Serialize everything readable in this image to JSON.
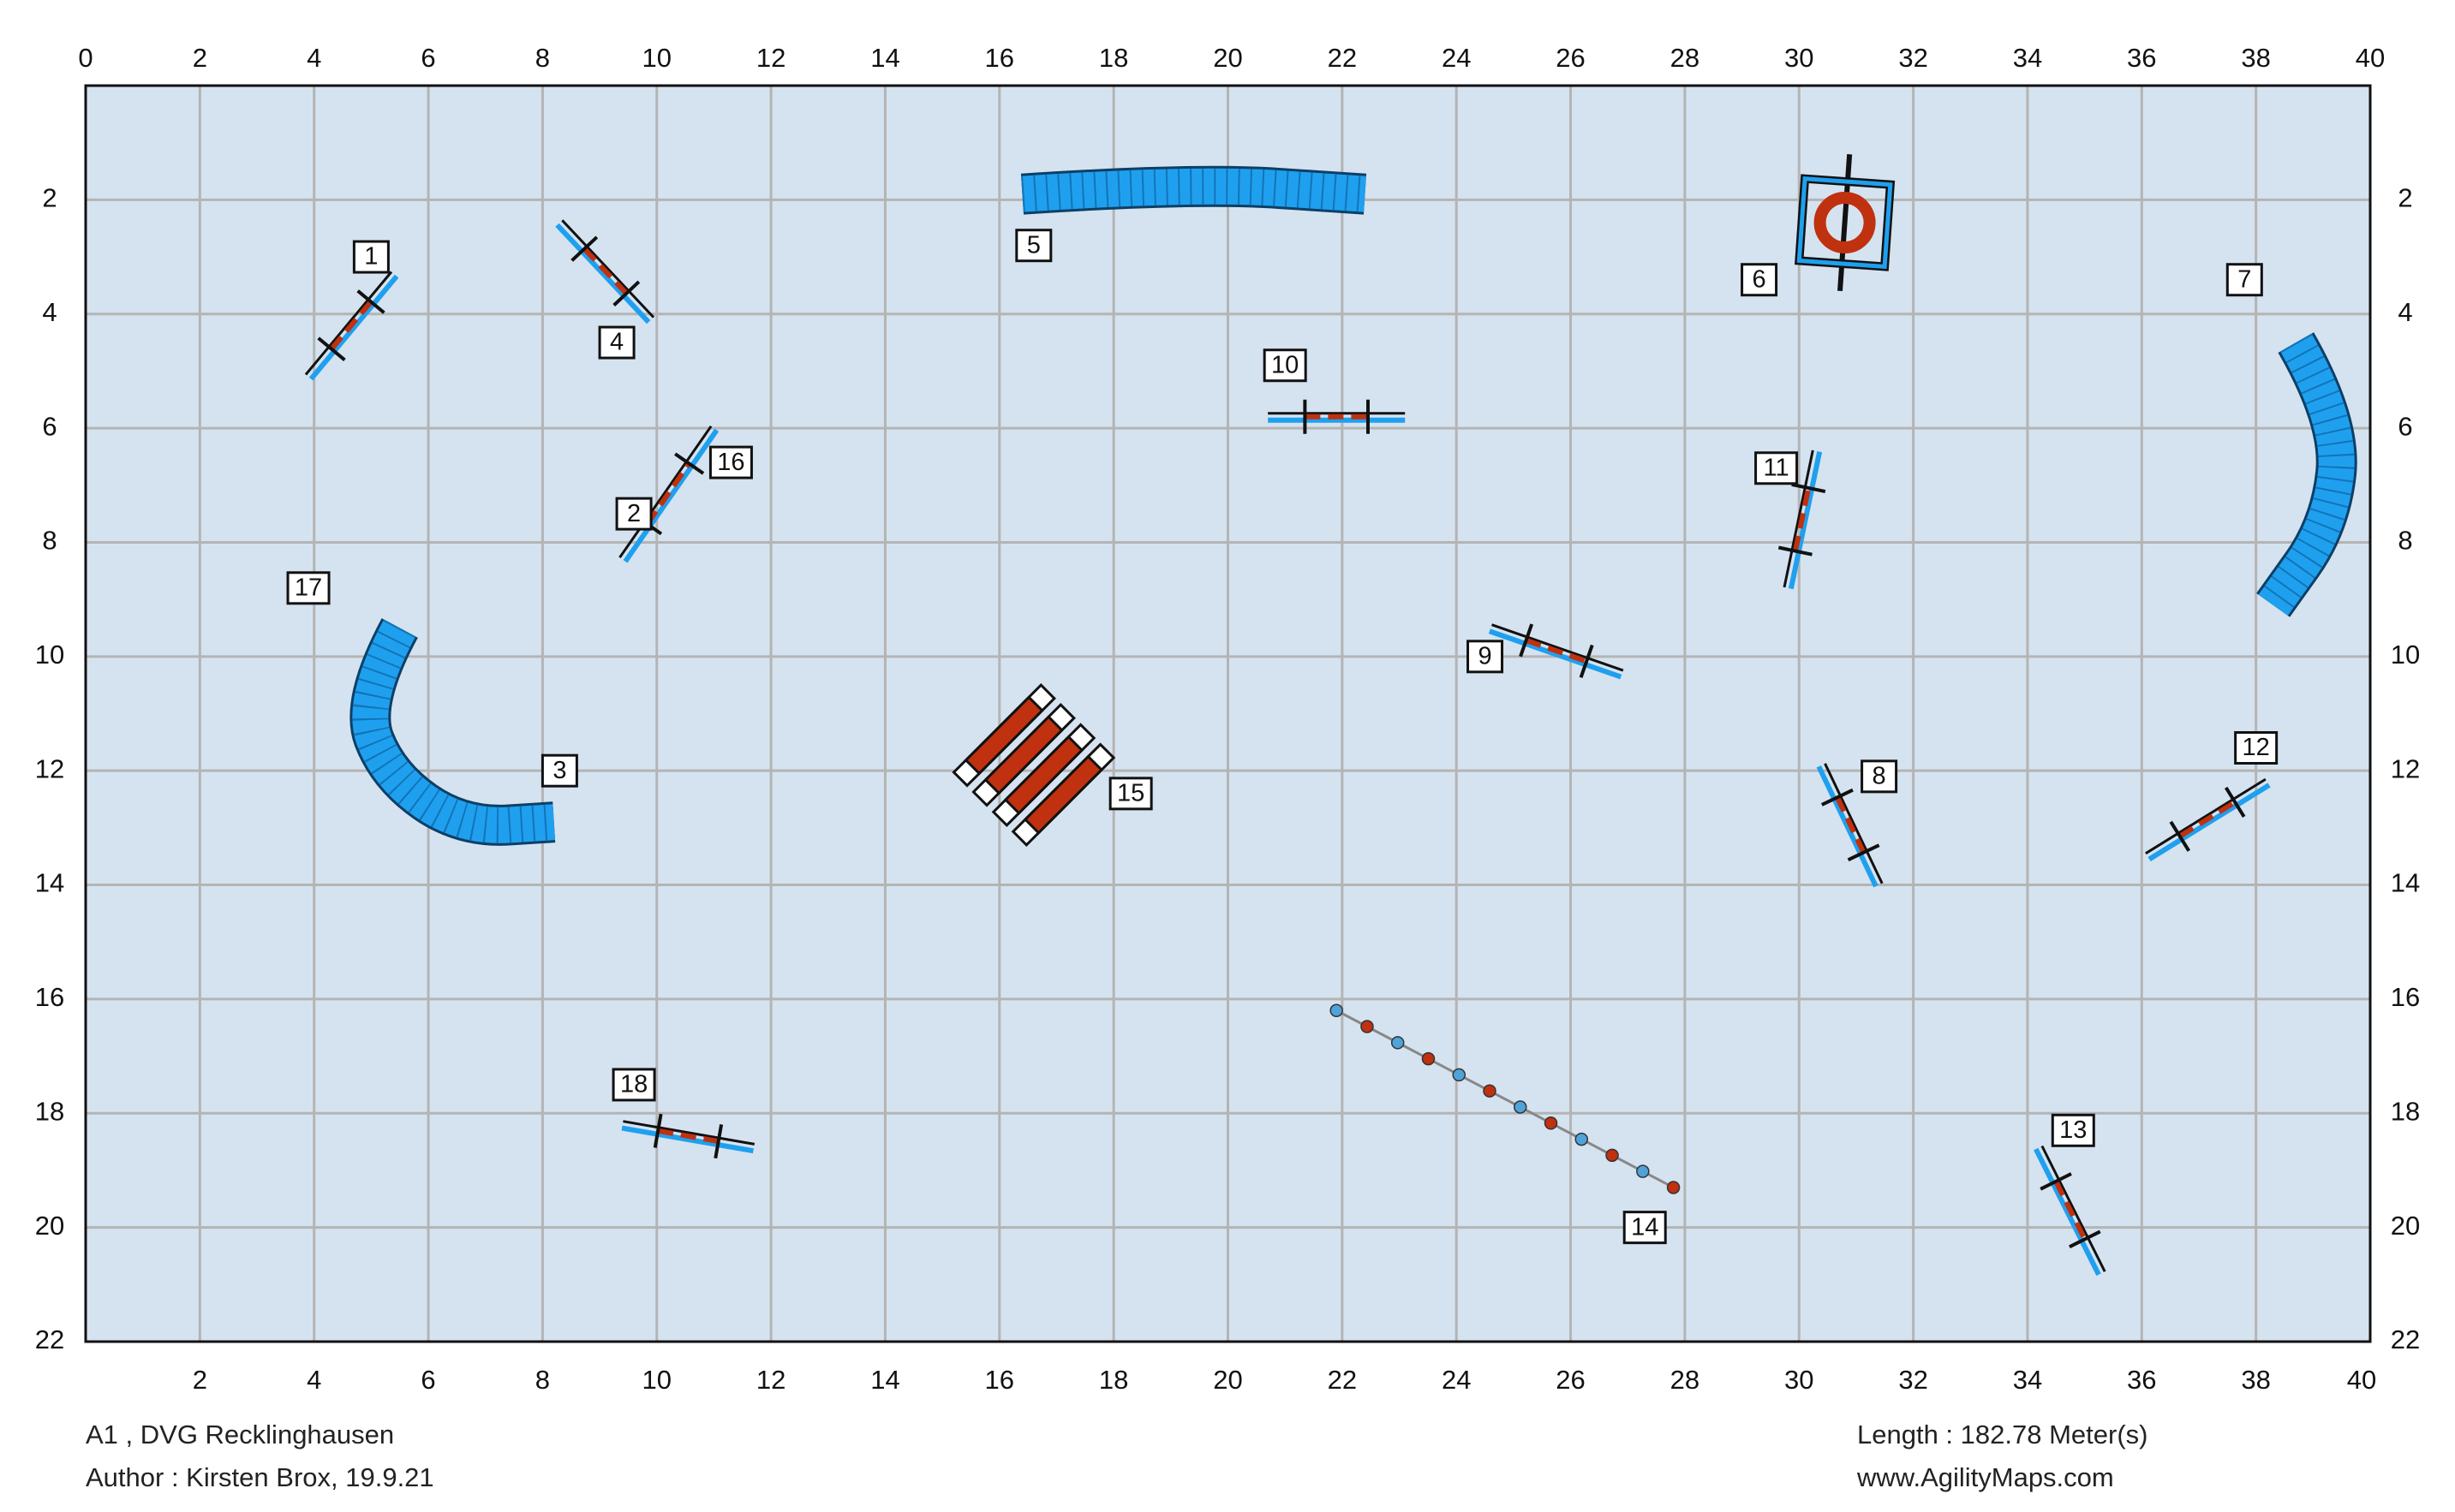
{
  "course": {
    "title": "A1 , DVG Recklinghausen",
    "author": "Author : Kirsten Brox, 19.9.21",
    "length": "Length : 182.78 Meter(s)",
    "website": "www.AgilityMaps.com"
  },
  "grid": {
    "x_range": [
      0,
      40
    ],
    "y_range": [
      0,
      22
    ],
    "top_tick_labels": [
      "0",
      "2",
      "4",
      "6",
      "8",
      "10",
      "12",
      "14",
      "16",
      "18",
      "20",
      "22",
      "24",
      "26",
      "28",
      "30",
      "32",
      "34",
      "36",
      "38",
      "40"
    ],
    "bottom_tick_labels": [
      "2",
      "4",
      "6",
      "8",
      "10",
      "12",
      "14",
      "16",
      "18",
      "20",
      "22",
      "24",
      "26",
      "28",
      "30",
      "32",
      "34",
      "36",
      "38",
      "40"
    ],
    "side_tick_labels": [
      "2",
      "4",
      "6",
      "8",
      "10",
      "12",
      "14",
      "16",
      "18",
      "20",
      "22"
    ]
  },
  "colors": {
    "field": "#d5e3f0",
    "grid_line": "#b4b4b4",
    "equipment_blue": "#1fa0ef",
    "equipment_red": "#c0310f",
    "outline": "#111111"
  },
  "obstacles": [
    {
      "number": "1",
      "type": "jump",
      "x1": 3.9,
      "y1": 5.1,
      "x2": 5.4,
      "y2": 3.3,
      "label_at": [
        5.0,
        3.0
      ]
    },
    {
      "number": "2",
      "type": "jump",
      "x1": 9.4,
      "y1": 8.3,
      "x2": 11.0,
      "y2": 6.0,
      "label_at": [
        9.6,
        7.5
      ]
    },
    {
      "number": "3",
      "type": "tunnel",
      "points": [
        [
          5.5,
          9.5
        ],
        [
          4.8,
          10.8
        ],
        [
          5.3,
          12.1
        ],
        [
          6.6,
          13.0
        ],
        [
          8.2,
          12.9
        ]
      ],
      "label_at": [
        8.3,
        12.0
      ]
    },
    {
      "number": "4",
      "type": "jump",
      "x1": 8.3,
      "y1": 2.4,
      "x2": 9.9,
      "y2": 4.1,
      "label_at": [
        9.3,
        4.5
      ]
    },
    {
      "number": "5",
      "type": "tunnel",
      "points": [
        [
          16.4,
          1.9
        ],
        [
          19.4,
          1.7
        ],
        [
          22.4,
          1.9
        ]
      ],
      "label_at": [
        16.6,
        2.8
      ]
    },
    {
      "number": "6",
      "type": "tire",
      "cx": 30.8,
      "cy": 2.4,
      "label_at": [
        29.3,
        3.4
      ]
    },
    {
      "number": "7",
      "type": "tunnel",
      "points": [
        [
          38.7,
          4.5
        ],
        [
          39.5,
          5.9
        ],
        [
          39.3,
          7.7
        ],
        [
          38.3,
          9.1
        ]
      ],
      "label_at": [
        37.8,
        3.4
      ]
    },
    {
      "number": "8",
      "type": "jump",
      "x1": 30.4,
      "y1": 11.9,
      "x2": 31.4,
      "y2": 14.0,
      "label_at": [
        31.4,
        12.1
      ]
    },
    {
      "number": "9",
      "type": "jump",
      "x1": 24.6,
      "y1": 9.5,
      "x2": 26.9,
      "y2": 10.3,
      "label_at": [
        24.5,
        10.0
      ]
    },
    {
      "number": "10",
      "type": "jump",
      "x1": 20.7,
      "y1": 5.8,
      "x2": 23.1,
      "y2": 5.8,
      "label_at": [
        21.0,
        4.9
      ]
    },
    {
      "number": "11",
      "type": "jump",
      "x1": 29.8,
      "y1": 8.8,
      "x2": 30.3,
      "y2": 6.4,
      "label_at": [
        29.6,
        6.7
      ]
    },
    {
      "number": "12",
      "type": "jump",
      "x1": 36.1,
      "y1": 13.5,
      "x2": 38.2,
      "y2": 12.2,
      "label_at": [
        38.0,
        11.6
      ]
    },
    {
      "number": "13",
      "type": "jump",
      "x1": 34.2,
      "y1": 18.6,
      "x2": 35.3,
      "y2": 20.8,
      "label_at": [
        34.8,
        18.3
      ]
    },
    {
      "number": "14",
      "type": "weave",
      "x1": 21.9,
      "y1": 16.2,
      "x2": 27.8,
      "y2": 19.3,
      "poles": 12,
      "label_at": [
        27.3,
        20.0
      ]
    },
    {
      "number": "15",
      "type": "long-jump",
      "cx": 16.6,
      "cy": 11.9,
      "label_at": [
        18.3,
        12.4
      ]
    },
    {
      "number": "16",
      "type": "jump",
      "x1": 9.4,
      "y1": 8.3,
      "x2": 11.0,
      "y2": 6.0,
      "label_at": [
        11.3,
        6.6
      ]
    },
    {
      "number": "17",
      "type": "tunnel",
      "points": [
        [
          5.5,
          9.5
        ],
        [
          4.8,
          10.8
        ],
        [
          5.3,
          12.1
        ],
        [
          6.6,
          13.0
        ],
        [
          8.2,
          12.9
        ]
      ],
      "label_at": [
        3.9,
        8.8
      ]
    },
    {
      "number": "18",
      "type": "jump",
      "x1": 9.4,
      "y1": 18.2,
      "x2": 11.7,
      "y2": 18.6,
      "label_at": [
        9.6,
        17.5
      ]
    }
  ]
}
